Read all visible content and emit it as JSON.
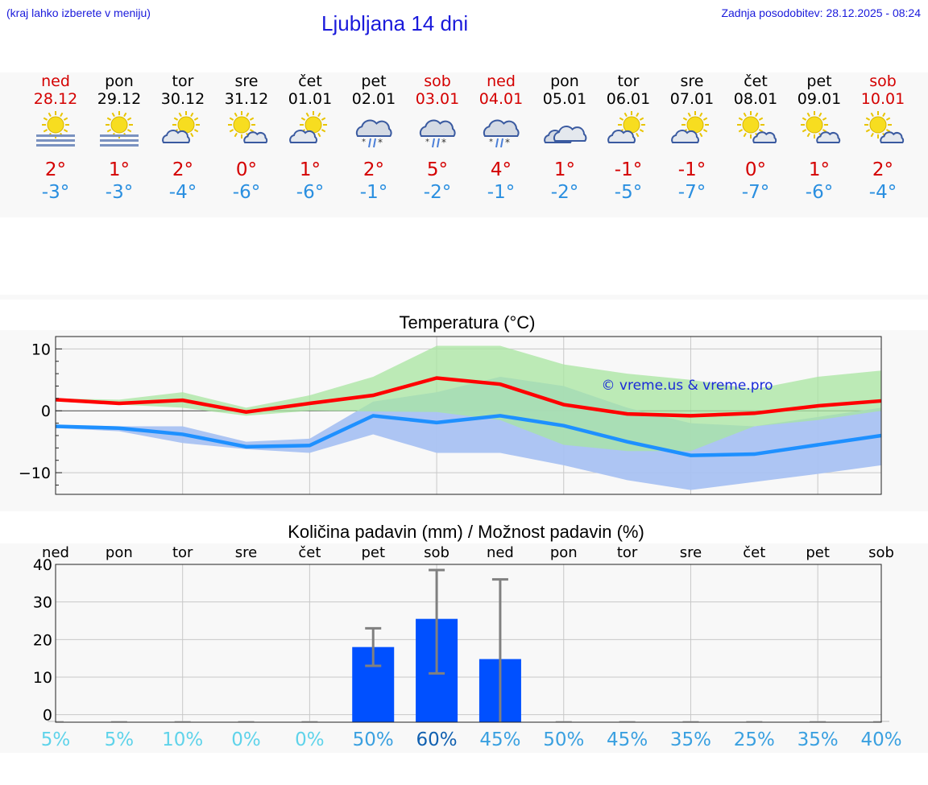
{
  "header": {
    "menu_hint": "(kraj lahko izberete v meniju)",
    "title": "Ljubljana 14 dni",
    "updated": "Zadnja posodobitev: 28.12.2025 - 08:24"
  },
  "colors": {
    "header_text": "#1a1adb",
    "weekend": "#d40000",
    "temp_max": "#ff0000",
    "temp_min": "#1e90ff",
    "max_band": "#a8e6a0",
    "min_band": "#a9c2f2",
    "overlap_band": "#7cc3a8",
    "precip_bar": "#0050ff",
    "error_bar": "#808080"
  },
  "days": [
    {
      "name": "ned",
      "date": "28.12",
      "weekend": true,
      "icon": "sun-fog-icon",
      "max": "2°",
      "min": "-3°"
    },
    {
      "name": "pon",
      "date": "29.12",
      "weekend": false,
      "icon": "sun-fog-icon",
      "max": "1°",
      "min": "-3°"
    },
    {
      "name": "tor",
      "date": "30.12",
      "weekend": false,
      "icon": "sun-cloud-icon",
      "max": "2°",
      "min": "-4°"
    },
    {
      "name": "sre",
      "date": "31.12",
      "weekend": false,
      "icon": "sun-small-cloud-icon",
      "max": "0°",
      "min": "-6°"
    },
    {
      "name": "čet",
      "date": "01.01",
      "weekend": false,
      "icon": "sun-cloud-icon",
      "max": "1°",
      "min": "-6°"
    },
    {
      "name": "pet",
      "date": "02.01",
      "weekend": false,
      "icon": "snow-sleet-icon",
      "max": "2°",
      "min": "-1°"
    },
    {
      "name": "sob",
      "date": "03.01",
      "weekend": true,
      "icon": "snow-sleet-icon",
      "max": "5°",
      "min": "-2°"
    },
    {
      "name": "ned",
      "date": "04.01",
      "weekend": true,
      "icon": "snow-sleet-icon",
      "max": "4°",
      "min": "-1°"
    },
    {
      "name": "pon",
      "date": "05.01",
      "weekend": false,
      "icon": "cloudy-icon",
      "max": "1°",
      "min": "-2°"
    },
    {
      "name": "tor",
      "date": "06.01",
      "weekend": false,
      "icon": "sun-cloud-icon",
      "max": "-1°",
      "min": "-5°"
    },
    {
      "name": "sre",
      "date": "07.01",
      "weekend": false,
      "icon": "sun-cloud-icon",
      "max": "-1°",
      "min": "-7°"
    },
    {
      "name": "čet",
      "date": "08.01",
      "weekend": false,
      "icon": "sun-small-cloud-icon",
      "max": "0°",
      "min": "-7°"
    },
    {
      "name": "pet",
      "date": "09.01",
      "weekend": false,
      "icon": "sun-small-cloud-icon",
      "max": "1°",
      "min": "-6°"
    },
    {
      "name": "sob",
      "date": "10.01",
      "weekend": true,
      "icon": "sun-small-cloud-icon",
      "max": "2°",
      "min": "-4°"
    }
  ],
  "chart_data": [
    {
      "type": "line",
      "title": "Temperatura (°C)",
      "watermark": "© vreme.us & vreme.pro",
      "x": [
        0,
        1,
        2,
        3,
        4,
        5,
        6,
        7,
        8,
        9,
        10,
        11,
        12,
        13
      ],
      "ylim": [
        -13.5,
        12
      ],
      "yticks": [
        10,
        0,
        -10
      ],
      "series": [
        {
          "role": "max",
          "values": [
            1.8,
            1.2,
            1.7,
            -0.2,
            1.2,
            2.5,
            5.3,
            4.3,
            1.0,
            -0.5,
            -0.8,
            -0.4,
            0.8,
            1.6
          ]
        },
        {
          "role": "min",
          "values": [
            -2.5,
            -2.8,
            -3.8,
            -5.8,
            -5.6,
            -0.8,
            -1.9,
            -0.8,
            -2.4,
            -5.0,
            -7.2,
            -7.0,
            -5.5,
            -4.0
          ]
        }
      ],
      "bands": [
        {
          "role": "max_range",
          "upper": [
            2.0,
            1.8,
            3.0,
            0.5,
            2.5,
            5.5,
            10.5,
            10.5,
            7.5,
            6.0,
            5.0,
            3.5,
            5.5,
            6.5
          ],
          "lower": [
            1.5,
            1.0,
            0.5,
            -0.8,
            0.0,
            -0.1,
            -0.2,
            -1.5,
            -5.5,
            -6.5,
            -6.5,
            -2.5,
            -1.5,
            0.0
          ]
        },
        {
          "role": "min_range",
          "upper": [
            -2.3,
            -2.5,
            -2.5,
            -5.0,
            -4.5,
            1.5,
            3.0,
            5.5,
            4.0,
            0.5,
            -2.0,
            -2.5,
            -1.0,
            0.5
          ],
          "lower": [
            -2.8,
            -3.3,
            -5.2,
            -6.2,
            -6.8,
            -3.8,
            -6.8,
            -6.8,
            -8.8,
            -11.2,
            -12.8,
            -11.5,
            -10.2,
            -8.8
          ]
        }
      ]
    },
    {
      "type": "bar",
      "title": "Količina padavin (mm) / Možnost padavin (%)",
      "categories": [
        "ned",
        "pon",
        "tor",
        "sre",
        "čet",
        "pet",
        "sob",
        "ned",
        "pon",
        "tor",
        "sre",
        "čet",
        "pet",
        "sob"
      ],
      "ylim": [
        -2,
        40
      ],
      "yticks": [
        40,
        30,
        20,
        10,
        0
      ],
      "values": [
        0,
        0,
        0,
        0,
        0,
        18,
        25.5,
        14.8,
        0,
        0,
        0,
        0,
        0,
        0
      ],
      "error_low": [
        0,
        0,
        0,
        0,
        0,
        13,
        11,
        0,
        0,
        0,
        0,
        0,
        0,
        0
      ],
      "error_high": [
        0,
        0,
        0,
        0,
        0,
        23,
        38.5,
        36,
        0,
        0,
        0,
        0,
        0,
        0
      ],
      "probability": [
        "5%",
        "5%",
        "10%",
        "0%",
        "0%",
        "50%",
        "60%",
        "45%",
        "50%",
        "45%",
        "35%",
        "25%",
        "35%",
        "40%"
      ],
      "probability_colors": [
        "#5fd3ea",
        "#5fd3ea",
        "#5fd3ea",
        "#5fd3ea",
        "#5fd3ea",
        "#3aa0e0",
        "#1060b0",
        "#3aa0e0",
        "#3aa0e0",
        "#3aa0e0",
        "#3aa0e0",
        "#3aa0e0",
        "#3aa0e0",
        "#3aa0e0"
      ]
    }
  ]
}
